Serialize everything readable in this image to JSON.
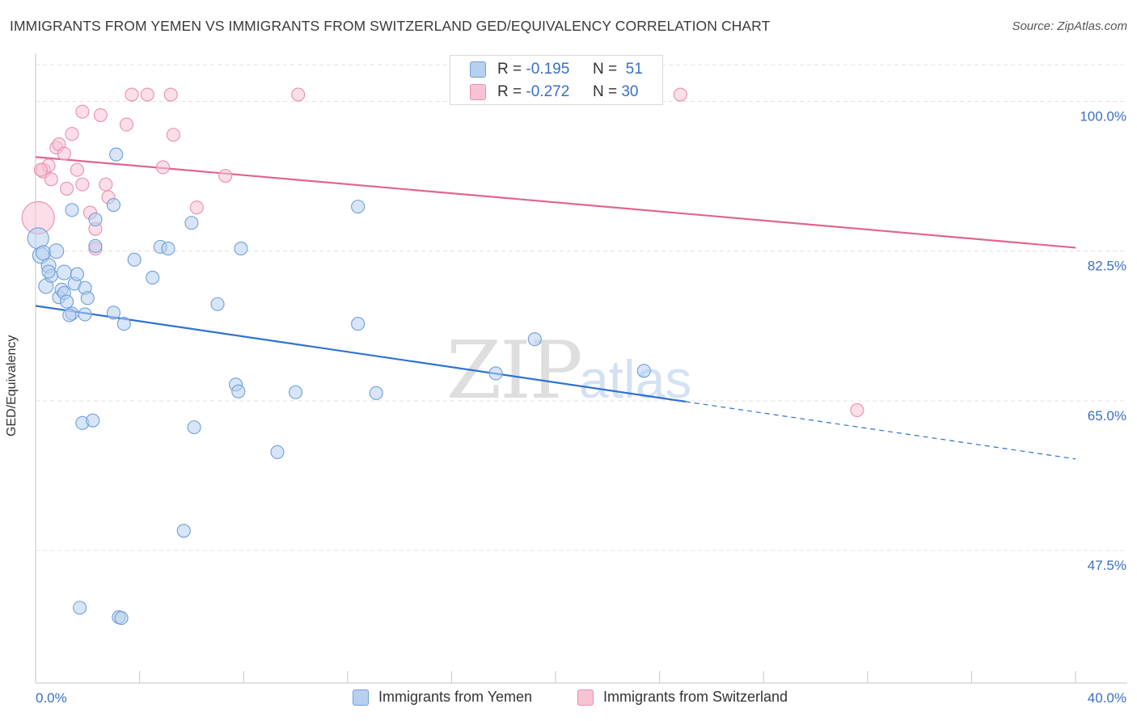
{
  "title": "IMMIGRANTS FROM YEMEN VS IMMIGRANTS FROM SWITZERLAND GED/EQUIVALENCY CORRELATION CHART",
  "source": "Source: ZipAtlas.com",
  "watermark": {
    "zip": "ZIP",
    "atlas": "atlas"
  },
  "legend_top": {
    "rows": [
      {
        "r_label": "R =",
        "r_value": "-0.195",
        "n_label": "N =",
        "n_value": "51"
      },
      {
        "r_label": "R =",
        "r_value": "-0.272",
        "n_label": "N =",
        "n_value": "30"
      }
    ]
  },
  "colors": {
    "yemen_fill": "#b7d0f0",
    "yemen_stroke": "#6f9fd8",
    "yemen_line": "#2f72d0",
    "swiss_fill": "#f7c3d3",
    "swiss_stroke": "#e98fae",
    "swiss_line": "#e0658e",
    "tick_label": "#3a6fc4",
    "grid": "#e3e3e3"
  },
  "chart_data": {
    "type": "scatter",
    "title": "IMMIGRANTS FROM YEMEN VS IMMIGRANTS FROM SWITZERLAND GED/EQUIVALENCY CORRELATION CHART",
    "xlabel": "",
    "ylabel": "GED/Equivalency",
    "xlim": [
      0,
      40
    ],
    "ylim": [
      32,
      106
    ],
    "x_tick_labels": [
      "0.0%",
      "40.0%"
    ],
    "y_ticks": [
      47.5,
      65.0,
      82.5,
      100.0
    ],
    "y_tick_labels": [
      "47.5%",
      "65.0%",
      "82.5%",
      "100.0%"
    ],
    "grid": true,
    "legend_position": "bottom",
    "series": [
      {
        "name": "Immigrants from Yemen",
        "r": -0.195,
        "n": 51,
        "trend": {
          "x0": 0,
          "y0": 76.1,
          "x1": 25,
          "y1": 64.9,
          "dashed_to_x": 40,
          "dashed_to_y": 58.2
        },
        "points": [
          {
            "x": 0.1,
            "y": 84.0,
            "s": 13
          },
          {
            "x": 0.2,
            "y": 82.0,
            "s": 10
          },
          {
            "x": 0.3,
            "y": 82.3,
            "s": 9
          },
          {
            "x": 0.5,
            "y": 80.8,
            "s": 9
          },
          {
            "x": 0.8,
            "y": 82.5,
            "s": 9
          },
          {
            "x": 0.4,
            "y": 78.4,
            "s": 9
          },
          {
            "x": 0.6,
            "y": 79.6,
            "s": 8
          },
          {
            "x": 0.9,
            "y": 77.1,
            "s": 8
          },
          {
            "x": 1.0,
            "y": 78.0,
            "s": 8
          },
          {
            "x": 1.1,
            "y": 77.6,
            "s": 8
          },
          {
            "x": 1.2,
            "y": 76.6,
            "s": 8
          },
          {
            "x": 1.4,
            "y": 75.2,
            "s": 8
          },
          {
            "x": 1.1,
            "y": 80.0,
            "s": 9
          },
          {
            "x": 1.5,
            "y": 78.7,
            "s": 8
          },
          {
            "x": 1.6,
            "y": 79.8,
            "s": 8
          },
          {
            "x": 1.9,
            "y": 78.2,
            "s": 8
          },
          {
            "x": 2.0,
            "y": 77.0,
            "s": 8
          },
          {
            "x": 1.3,
            "y": 75.0,
            "s": 8
          },
          {
            "x": 1.9,
            "y": 75.1,
            "s": 8
          },
          {
            "x": 1.4,
            "y": 87.3,
            "s": 8
          },
          {
            "x": 2.3,
            "y": 86.2,
            "s": 8
          },
          {
            "x": 2.3,
            "y": 83.1,
            "s": 8
          },
          {
            "x": 3.0,
            "y": 87.9,
            "s": 8
          },
          {
            "x": 3.1,
            "y": 93.8,
            "s": 8
          },
          {
            "x": 3.0,
            "y": 75.3,
            "s": 8
          },
          {
            "x": 3.4,
            "y": 74.0,
            "s": 8
          },
          {
            "x": 3.8,
            "y": 81.5,
            "s": 8
          },
          {
            "x": 4.5,
            "y": 79.4,
            "s": 8
          },
          {
            "x": 4.8,
            "y": 83.0,
            "s": 8
          },
          {
            "x": 5.1,
            "y": 82.8,
            "s": 8
          },
          {
            "x": 6.0,
            "y": 85.8,
            "s": 8
          },
          {
            "x": 7.0,
            "y": 76.3,
            "s": 8
          },
          {
            "x": 7.9,
            "y": 82.8,
            "s": 8
          },
          {
            "x": 12.4,
            "y": 87.7,
            "s": 8
          },
          {
            "x": 12.4,
            "y": 74.0,
            "s": 8
          },
          {
            "x": 19.2,
            "y": 72.2,
            "s": 8
          },
          {
            "x": 17.7,
            "y": 68.2,
            "s": 8
          },
          {
            "x": 23.4,
            "y": 68.5,
            "s": 8
          },
          {
            "x": 7.7,
            "y": 66.9,
            "s": 8
          },
          {
            "x": 7.8,
            "y": 66.1,
            "s": 8
          },
          {
            "x": 10.0,
            "y": 66.0,
            "s": 8
          },
          {
            "x": 13.1,
            "y": 65.9,
            "s": 8
          },
          {
            "x": 1.8,
            "y": 62.4,
            "s": 8
          },
          {
            "x": 2.2,
            "y": 62.7,
            "s": 8
          },
          {
            "x": 6.1,
            "y": 61.9,
            "s": 8
          },
          {
            "x": 9.3,
            "y": 59.0,
            "s": 8
          },
          {
            "x": 5.7,
            "y": 49.8,
            "s": 8
          },
          {
            "x": 1.7,
            "y": 40.8,
            "s": 8
          },
          {
            "x": 3.2,
            "y": 39.7,
            "s": 8
          },
          {
            "x": 3.3,
            "y": 39.6,
            "s": 8
          },
          {
            "x": 0.5,
            "y": 80.1,
            "s": 8
          }
        ]
      },
      {
        "name": "Immigrants from Switzerland",
        "r": -0.272,
        "n": 30,
        "trend": {
          "x0": 0,
          "y0": 93.5,
          "x1": 40,
          "y1": 82.9
        },
        "points": [
          {
            "x": 0.1,
            "y": 86.4,
            "s": 20
          },
          {
            "x": 0.3,
            "y": 91.9,
            "s": 9
          },
          {
            "x": 0.5,
            "y": 92.5,
            "s": 8
          },
          {
            "x": 0.6,
            "y": 90.9,
            "s": 8
          },
          {
            "x": 0.8,
            "y": 94.6,
            "s": 8
          },
          {
            "x": 0.9,
            "y": 95.0,
            "s": 8
          },
          {
            "x": 1.1,
            "y": 93.9,
            "s": 8
          },
          {
            "x": 1.2,
            "y": 89.8,
            "s": 8
          },
          {
            "x": 1.4,
            "y": 96.2,
            "s": 8
          },
          {
            "x": 1.6,
            "y": 92.0,
            "s": 8
          },
          {
            "x": 1.8,
            "y": 90.3,
            "s": 8
          },
          {
            "x": 1.8,
            "y": 98.8,
            "s": 8
          },
          {
            "x": 2.1,
            "y": 87.0,
            "s": 8
          },
          {
            "x": 2.3,
            "y": 82.8,
            "s": 8
          },
          {
            "x": 2.3,
            "y": 85.1,
            "s": 8
          },
          {
            "x": 2.5,
            "y": 98.4,
            "s": 8
          },
          {
            "x": 2.7,
            "y": 90.3,
            "s": 8
          },
          {
            "x": 2.8,
            "y": 88.8,
            "s": 8
          },
          {
            "x": 3.5,
            "y": 97.3,
            "s": 8
          },
          {
            "x": 3.7,
            "y": 100.8,
            "s": 8
          },
          {
            "x": 4.3,
            "y": 100.8,
            "s": 8
          },
          {
            "x": 4.9,
            "y": 92.3,
            "s": 8
          },
          {
            "x": 5.2,
            "y": 100.8,
            "s": 8
          },
          {
            "x": 5.3,
            "y": 96.1,
            "s": 8
          },
          {
            "x": 6.2,
            "y": 87.6,
            "s": 8
          },
          {
            "x": 7.3,
            "y": 91.3,
            "s": 8
          },
          {
            "x": 10.1,
            "y": 100.8,
            "s": 8
          },
          {
            "x": 24.8,
            "y": 100.8,
            "s": 8
          },
          {
            "x": 31.6,
            "y": 63.9,
            "s": 8
          },
          {
            "x": 0.2,
            "y": 92.0,
            "s": 8
          }
        ]
      }
    ]
  }
}
